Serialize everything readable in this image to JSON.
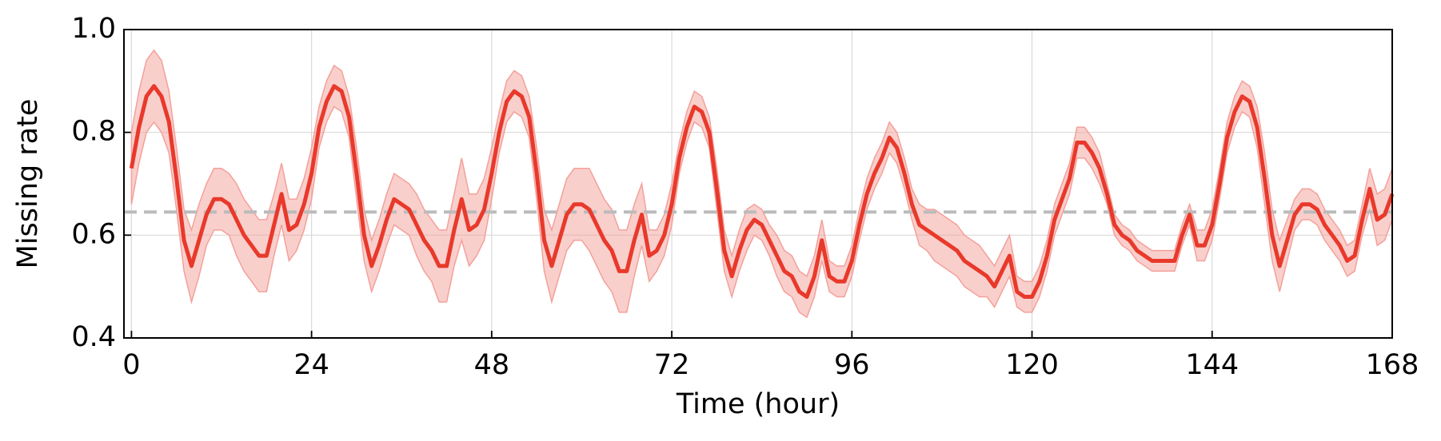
{
  "chart_data": {
    "type": "line",
    "x_label": "Time (hour)",
    "y_label": "Missing rate",
    "xlim": [
      -1,
      168
    ],
    "xticks": [
      0,
      24,
      48,
      72,
      96,
      120,
      144,
      168
    ],
    "ylim": [
      0.4,
      1
    ],
    "yticks": [
      0.4,
      0.6,
      0.8,
      {
        "value": 1,
        "label": "1.0"
      }
    ],
    "grid": true,
    "reference_line": 0.645,
    "reference_color": "#bbbbbb",
    "x": [
      0,
      1,
      2,
      3,
      4,
      5,
      6,
      7,
      8,
      9,
      10,
      11,
      12,
      13,
      14,
      15,
      16,
      17,
      18,
      19,
      20,
      21,
      22,
      23,
      24,
      25,
      26,
      27,
      28,
      29,
      30,
      31,
      32,
      33,
      34,
      35,
      36,
      37,
      38,
      39,
      40,
      41,
      42,
      43,
      44,
      45,
      46,
      47,
      48,
      49,
      50,
      51,
      52,
      53,
      54,
      55,
      56,
      57,
      58,
      59,
      60,
      61,
      62,
      63,
      64,
      65,
      66,
      67,
      68,
      69,
      70,
      71,
      72,
      73,
      74,
      75,
      76,
      77,
      78,
      79,
      80,
      81,
      82,
      83,
      84,
      85,
      86,
      87,
      88,
      89,
      90,
      91,
      92,
      93,
      94,
      95,
      96,
      97,
      98,
      99,
      100,
      101,
      102,
      103,
      104,
      105,
      106,
      107,
      108,
      109,
      110,
      111,
      112,
      113,
      114,
      115,
      116,
      117,
      118,
      119,
      120,
      121,
      122,
      123,
      124,
      125,
      126,
      127,
      128,
      129,
      130,
      131,
      132,
      133,
      134,
      135,
      136,
      137,
      138,
      139,
      140,
      141,
      142,
      143,
      144,
      145,
      146,
      147,
      148,
      149,
      150,
      151,
      152,
      153,
      154,
      155,
      156,
      157,
      158,
      159,
      160,
      161,
      162,
      163,
      164,
      165,
      166,
      167,
      168
    ],
    "series": [
      {
        "color": "#e8392b",
        "band_color": "#f4a09a",
        "values": [
          0.73,
          0.81,
          0.87,
          0.89,
          0.87,
          0.82,
          0.71,
          0.59,
          0.54,
          0.59,
          0.64,
          0.67,
          0.67,
          0.66,
          0.63,
          0.6,
          0.58,
          0.56,
          0.56,
          0.62,
          0.68,
          0.61,
          0.62,
          0.66,
          0.72,
          0.81,
          0.86,
          0.89,
          0.88,
          0.83,
          0.72,
          0.6,
          0.54,
          0.58,
          0.63,
          0.67,
          0.66,
          0.65,
          0.62,
          0.59,
          0.57,
          0.54,
          0.54,
          0.61,
          0.67,
          0.61,
          0.62,
          0.65,
          0.72,
          0.8,
          0.86,
          0.88,
          0.87,
          0.83,
          0.72,
          0.59,
          0.54,
          0.59,
          0.64,
          0.66,
          0.66,
          0.65,
          0.62,
          0.59,
          0.57,
          0.53,
          0.53,
          0.59,
          0.64,
          0.56,
          0.57,
          0.6,
          0.66,
          0.75,
          0.81,
          0.85,
          0.84,
          0.8,
          0.69,
          0.57,
          0.52,
          0.57,
          0.61,
          0.63,
          0.62,
          0.59,
          0.56,
          0.53,
          0.52,
          0.49,
          0.48,
          0.52,
          0.59,
          0.52,
          0.51,
          0.51,
          0.55,
          0.62,
          0.68,
          0.72,
          0.75,
          0.79,
          0.77,
          0.72,
          0.66,
          0.62,
          0.61,
          0.6,
          0.59,
          0.58,
          0.57,
          0.55,
          0.54,
          0.53,
          0.52,
          0.5,
          0.53,
          0.56,
          0.49,
          0.48,
          0.48,
          0.51,
          0.56,
          0.63,
          0.67,
          0.71,
          0.78,
          0.78,
          0.76,
          0.73,
          0.68,
          0.62,
          0.6,
          0.59,
          0.57,
          0.56,
          0.55,
          0.55,
          0.55,
          0.55,
          0.6,
          0.64,
          0.58,
          0.58,
          0.62,
          0.7,
          0.79,
          0.84,
          0.87,
          0.86,
          0.81,
          0.71,
          0.6,
          0.54,
          0.59,
          0.64,
          0.66,
          0.66,
          0.65,
          0.62,
          0.6,
          0.58,
          0.55,
          0.56,
          0.63,
          0.69,
          0.63,
          0.64,
          0.68
        ],
        "errors": [
          0.07,
          0.07,
          0.07,
          0.07,
          0.07,
          0.06,
          0.06,
          0.06,
          0.07,
          0.07,
          0.06,
          0.06,
          0.06,
          0.06,
          0.07,
          0.07,
          0.07,
          0.07,
          0.07,
          0.06,
          0.06,
          0.06,
          0.05,
          0.05,
          0.05,
          0.04,
          0.04,
          0.04,
          0.04,
          0.04,
          0.05,
          0.05,
          0.05,
          0.05,
          0.05,
          0.05,
          0.05,
          0.05,
          0.06,
          0.06,
          0.06,
          0.07,
          0.07,
          0.07,
          0.08,
          0.07,
          0.06,
          0.06,
          0.05,
          0.04,
          0.04,
          0.04,
          0.04,
          0.04,
          0.05,
          0.06,
          0.07,
          0.07,
          0.07,
          0.07,
          0.07,
          0.08,
          0.08,
          0.08,
          0.08,
          0.08,
          0.08,
          0.07,
          0.06,
          0.05,
          0.04,
          0.04,
          0.04,
          0.03,
          0.03,
          0.03,
          0.03,
          0.03,
          0.04,
          0.04,
          0.04,
          0.04,
          0.04,
          0.03,
          0.03,
          0.03,
          0.04,
          0.04,
          0.04,
          0.04,
          0.04,
          0.04,
          0.04,
          0.03,
          0.03,
          0.03,
          0.03,
          0.03,
          0.03,
          0.03,
          0.03,
          0.03,
          0.03,
          0.03,
          0.03,
          0.04,
          0.04,
          0.05,
          0.05,
          0.05,
          0.05,
          0.05,
          0.05,
          0.05,
          0.04,
          0.04,
          0.04,
          0.04,
          0.03,
          0.03,
          0.03,
          0.03,
          0.03,
          0.03,
          0.03,
          0.03,
          0.03,
          0.03,
          0.03,
          0.03,
          0.02,
          0.02,
          0.02,
          0.02,
          0.02,
          0.02,
          0.02,
          0.02,
          0.02,
          0.02,
          0.02,
          0.02,
          0.03,
          0.03,
          0.03,
          0.03,
          0.03,
          0.03,
          0.03,
          0.03,
          0.04,
          0.05,
          0.05,
          0.05,
          0.04,
          0.03,
          0.03,
          0.03,
          0.03,
          0.03,
          0.03,
          0.03,
          0.03,
          0.03,
          0.03,
          0.04,
          0.05,
          0.05,
          0.05
        ]
      }
    ]
  }
}
